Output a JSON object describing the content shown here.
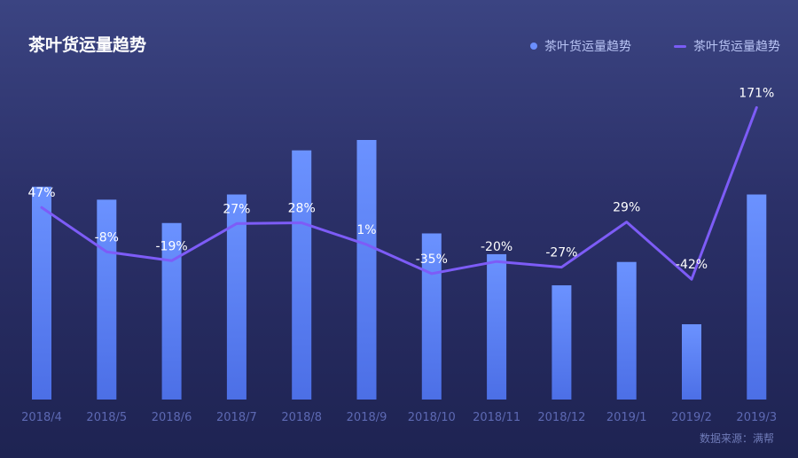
{
  "title": "茶叶货运量趋势",
  "legend": {
    "items": [
      {
        "label": "茶叶货运量趋势",
        "color": "#6b8fff",
        "marker": "dot"
      },
      {
        "label": "茶叶货运量趋势",
        "color": "#7a5cf5",
        "marker": "line"
      }
    ]
  },
  "source": "数据来源：满帮",
  "colors": {
    "bar_top": "#6b92ff",
    "bar_bottom": "#4c6fe6",
    "line": "#7d5cf7",
    "data_label": "#ffffff",
    "axis_label": "#5d69b3"
  },
  "chart_data": {
    "type": "bar",
    "categories": [
      "2018/4",
      "2018/5",
      "2018/6",
      "2018/7",
      "2018/8",
      "2018/9",
      "2018/10",
      "2018/11",
      "2018/12",
      "2019/1",
      "2019/2",
      "2019/3"
    ],
    "series": [
      {
        "type": "bar",
        "values": [
          82,
          77,
          68,
          79,
          96,
          100,
          64,
          56,
          44,
          53,
          29,
          79
        ]
      },
      {
        "type": "line",
        "values": [
          47,
          -8,
          -19,
          27,
          28,
          1,
          -35,
          -20,
          -27,
          29,
          -42,
          171
        ],
        "labels": [
          "47%",
          "-8%",
          "-19%",
          "27%",
          "28%",
          "1%",
          "-35%",
          "-20%",
          "-27%",
          "29%",
          "-42%",
          "171%"
        ]
      }
    ],
    "grid": false
  }
}
